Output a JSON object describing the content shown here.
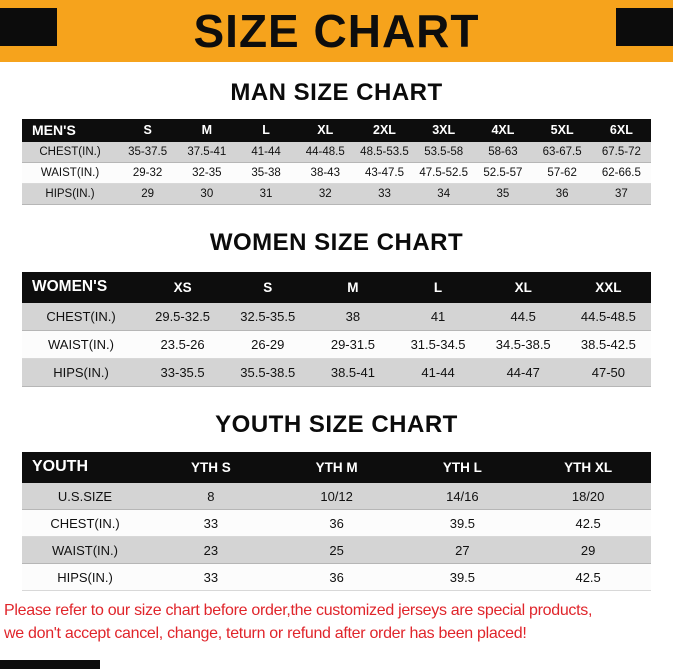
{
  "banner": {
    "title": "SIZE CHART"
  },
  "sections": [
    {
      "heading": "MAN SIZE CHART",
      "table": {
        "header": [
          "MEN'S",
          "S",
          "M",
          "L",
          "XL",
          "2XL",
          "3XL",
          "4XL",
          "5XL",
          "6XL"
        ],
        "rows": [
          [
            "CHEST(IN.)",
            "35-37.5",
            "37.5-41",
            "41-44",
            "44-48.5",
            "48.5-53.5",
            "53.5-58",
            "58-63",
            "63-67.5",
            "67.5-72"
          ],
          [
            "WAIST(IN.)",
            "29-32",
            "32-35",
            "35-38",
            "38-43",
            "43-47.5",
            "47.5-52.5",
            "52.5-57",
            "57-62",
            "62-66.5"
          ],
          [
            "HIPS(IN.)",
            "29",
            "30",
            "31",
            "32",
            "33",
            "34",
            "35",
            "36",
            "37"
          ]
        ]
      }
    },
    {
      "heading": "WOMEN SIZE CHART",
      "table": {
        "header": [
          "WOMEN'S",
          "XS",
          "S",
          "M",
          "L",
          "XL",
          "XXL"
        ],
        "rows": [
          [
            "CHEST(IN.)",
            "29.5-32.5",
            "32.5-35.5",
            "38",
            "41",
            "44.5",
            "44.5-48.5"
          ],
          [
            "WAIST(IN.)",
            "23.5-26",
            "26-29",
            "29-31.5",
            "31.5-34.5",
            "34.5-38.5",
            "38.5-42.5"
          ],
          [
            "HIPS(IN.)",
            "33-35.5",
            "35.5-38.5",
            "38.5-41",
            "41-44",
            "44-47",
            "47-50"
          ]
        ]
      }
    },
    {
      "heading": "YOUTH SIZE CHART",
      "table": {
        "header": [
          "YOUTH",
          "YTH S",
          "YTH M",
          "YTH L",
          "YTH XL"
        ],
        "rows": [
          [
            "U.S.SIZE",
            "8",
            "10/12",
            "14/16",
            "18/20"
          ],
          [
            "CHEST(IN.)",
            "33",
            "36",
            "39.5",
            "42.5"
          ],
          [
            "WAIST(IN.)",
            "23",
            "25",
            "27",
            "29"
          ],
          [
            "HIPS(IN.)",
            "33",
            "36",
            "39.5",
            "42.5"
          ]
        ]
      }
    }
  ],
  "footer": {
    "line1": "Please refer to our size chart before order,the customized jerseys are special products,",
    "line2": "we don't accept cancel, change, teturn or refund after order has been placed!"
  },
  "colors": {
    "banner_orange": "#F6A31C",
    "header_black": "#0D0D0D",
    "row_gray": "#D4D4D4",
    "row_white": "#FCFCFC",
    "note_red": "#E0252B"
  }
}
